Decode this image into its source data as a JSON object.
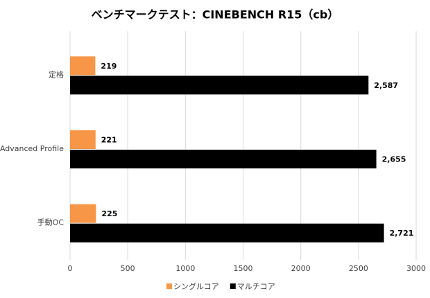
{
  "chart_data": {
    "type": "bar",
    "orientation": "horizontal",
    "title": "ベンチマークテスト：CINEBENCH R15（cb）",
    "categories": [
      "定格",
      "Advanced Profile",
      "手動OC"
    ],
    "series": [
      {
        "name": "シングルコア",
        "color": "#f79646",
        "values": [
          219,
          221,
          225
        ]
      },
      {
        "name": "マルチコア",
        "color": "#000000",
        "values": [
          2587,
          2655,
          2721
        ],
        "value_labels": [
          "2,587",
          "2,655",
          "2,721"
        ]
      }
    ],
    "xlim": [
      0,
      3000
    ],
    "xticks": [
      0,
      500,
      1000,
      1500,
      2000,
      2500,
      3000
    ],
    "grid": true,
    "legend": "bottom"
  }
}
